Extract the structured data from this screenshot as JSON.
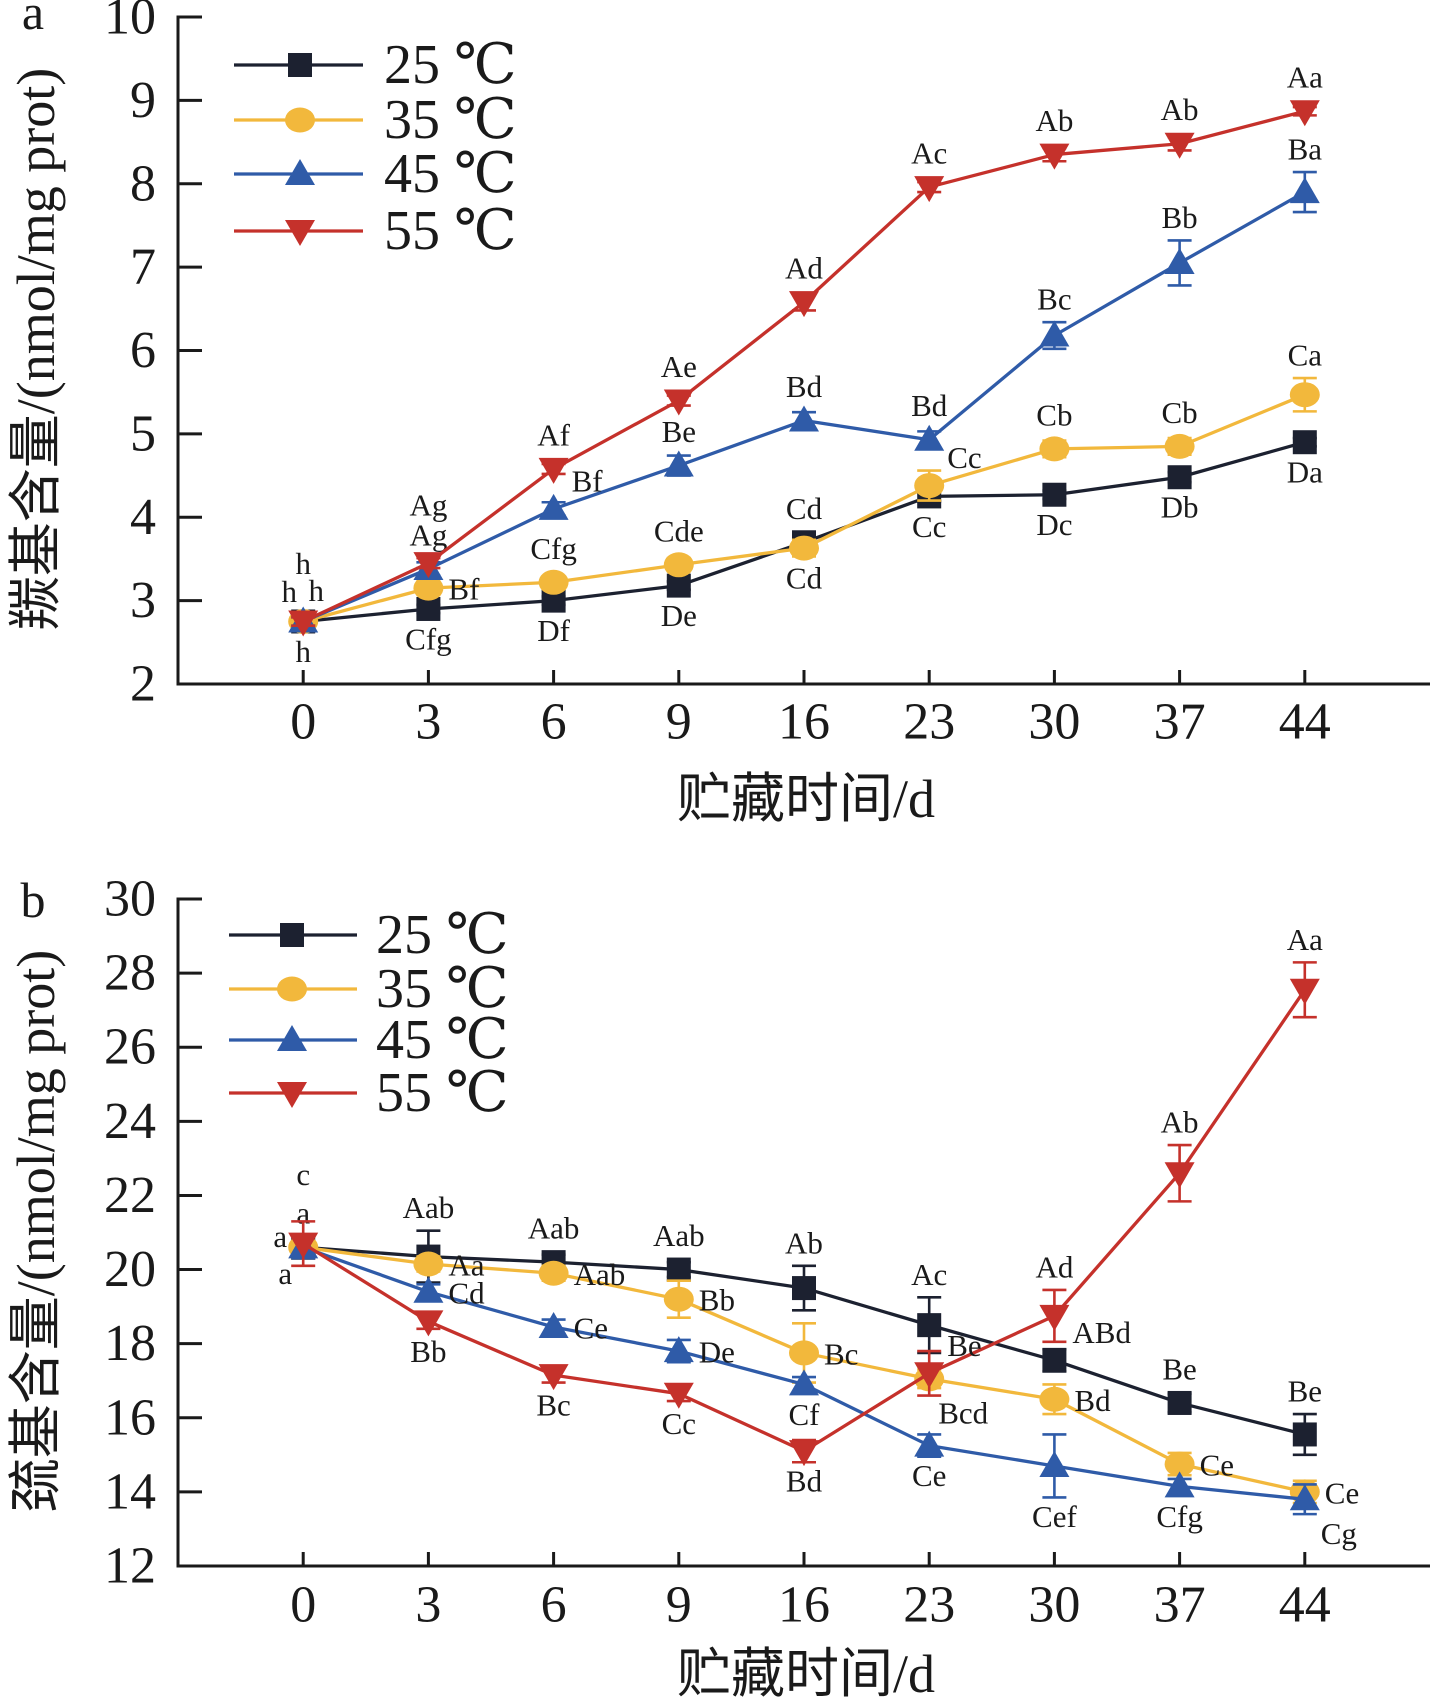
{
  "chart_data": [
    {
      "panel": "a",
      "type": "line",
      "xlabel": "贮藏时间/d",
      "ylabel": "羰基含量/(nmol/mg prot)",
      "categories": [
        "0",
        "3",
        "6",
        "9",
        "16",
        "23",
        "30",
        "37",
        "44"
      ],
      "ylim": [
        2,
        10
      ],
      "yticks": [
        2,
        3,
        4,
        5,
        6,
        7,
        8,
        9,
        10
      ],
      "grid": false,
      "legend": "top-left",
      "series": [
        {
          "name": "25 ℃",
          "color": "#1c2130",
          "marker": "square",
          "values": [
            2.75,
            2.9,
            3.0,
            3.18,
            3.7,
            4.25,
            4.27,
            4.48,
            4.9
          ],
          "errors": [
            0.05,
            0.05,
            0.05,
            0.05,
            0.1,
            0.06,
            0.05,
            0.06,
            0.05
          ],
          "labels": [
            "h",
            "Cfg",
            "Df",
            "De",
            "Cd",
            "Cc",
            "Dc",
            "Db",
            "Da"
          ]
        },
        {
          "name": "35 ℃",
          "color": "#f2b83c",
          "marker": "circle",
          "values": [
            2.75,
            3.15,
            3.22,
            3.43,
            3.63,
            4.38,
            4.82,
            4.85,
            5.47
          ],
          "errors": [
            0.05,
            0.08,
            0.06,
            0.08,
            0.1,
            0.18,
            0.1,
            0.1,
            0.2
          ],
          "labels": [
            "h",
            "Bf",
            "Cfg",
            "Cde",
            "Cd",
            "Cc",
            "Cb",
            "Cb",
            "Ca"
          ]
        },
        {
          "name": "45 ℃",
          "color": "#2f5ba8",
          "marker": "triangle-up",
          "values": [
            2.75,
            3.38,
            4.1,
            4.62,
            5.16,
            4.93,
            6.18,
            7.05,
            7.9
          ],
          "errors": [
            0.05,
            0.08,
            0.08,
            0.12,
            0.1,
            0.1,
            0.16,
            0.27,
            0.24
          ],
          "labels": [
            "h",
            "Ag",
            "Bf",
            "Be",
            "Bd",
            "Bd",
            "Bc",
            "Bb",
            "Ba"
          ]
        },
        {
          "name": "55 ℃",
          "color": "#c5312b",
          "marker": "triangle-down",
          "values": [
            2.75,
            3.45,
            4.58,
            5.4,
            6.58,
            7.96,
            8.35,
            8.48,
            8.87
          ],
          "errors": [
            0.05,
            0.06,
            0.06,
            0.06,
            0.1,
            0.06,
            0.08,
            0.08,
            0.05
          ],
          "labels": [
            "h",
            "Ag",
            "Af",
            "Ae",
            "Ad",
            "Ac",
            "Ab",
            "Ab",
            "Aa"
          ]
        }
      ]
    },
    {
      "panel": "b",
      "type": "line",
      "xlabel": "贮藏时间/d",
      "ylabel": "巯基含量/(nmol/mg prot)",
      "categories": [
        "0",
        "3",
        "6",
        "9",
        "16",
        "23",
        "30",
        "37",
        "44"
      ],
      "ylim": [
        12,
        30
      ],
      "yticks": [
        12,
        14,
        16,
        18,
        20,
        22,
        24,
        26,
        28,
        30
      ],
      "grid": false,
      "legend": "top-left",
      "series": [
        {
          "name": "25 ℃",
          "color": "#1c2130",
          "marker": "square",
          "values": [
            20.6,
            20.35,
            20.2,
            20.0,
            19.5,
            18.5,
            17.55,
            16.4,
            15.55
          ],
          "errors": [
            0.3,
            0.7,
            0.2,
            0.2,
            0.6,
            0.75,
            0.3,
            0.25,
            0.55
          ],
          "labels": [
            "a",
            "Aab",
            "Aab",
            "Aab",
            "Ab",
            "Ac",
            "ABd",
            "Be",
            "Be"
          ]
        },
        {
          "name": "35 ℃",
          "color": "#f2b83c",
          "marker": "circle",
          "values": [
            20.6,
            20.15,
            19.9,
            19.2,
            17.75,
            17.05,
            16.5,
            14.75,
            14.0
          ],
          "errors": [
            0.3,
            0.2,
            0.2,
            0.5,
            0.8,
            0.25,
            0.4,
            0.3,
            0.3
          ],
          "labels": [
            "a",
            "Aa",
            "Aab",
            "Bb",
            "Bc",
            "Bcd",
            "Bd",
            "Ce",
            "Ce"
          ]
        },
        {
          "name": "45 ℃",
          "color": "#2f5ba8",
          "marker": "triangle-up",
          "values": [
            20.6,
            19.4,
            18.45,
            17.8,
            16.9,
            15.25,
            14.7,
            14.15,
            13.8
          ],
          "errors": [
            0.3,
            0.2,
            0.2,
            0.3,
            0.2,
            0.3,
            0.85,
            0.2,
            0.4
          ],
          "labels": [
            "a",
            "Cd",
            "Ce",
            "De",
            "Cf",
            "Ce",
            "Cef",
            "Cfg",
            "Cg"
          ]
        },
        {
          "name": "55 ℃",
          "color": "#c5312b",
          "marker": "triangle-down",
          "values": [
            20.7,
            18.6,
            17.15,
            16.65,
            15.1,
            17.2,
            18.75,
            22.6,
            27.55
          ],
          "errors": [
            0.6,
            0.2,
            0.2,
            0.2,
            0.3,
            0.6,
            0.7,
            0.76,
            0.74
          ],
          "labels": [
            "c",
            "Bb",
            "Bc",
            "Cc",
            "Bd",
            "Be",
            "Ad",
            "Ab",
            "Aa"
          ]
        }
      ]
    }
  ]
}
